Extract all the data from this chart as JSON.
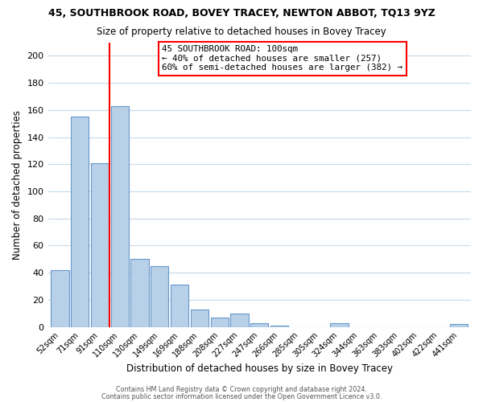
{
  "title1": "45, SOUTHBROOK ROAD, BOVEY TRACEY, NEWTON ABBOT, TQ13 9YZ",
  "title2": "Size of property relative to detached houses in Bovey Tracey",
  "xlabel": "Distribution of detached houses by size in Bovey Tracey",
  "ylabel": "Number of detached properties",
  "bin_labels": [
    "52sqm",
    "71sqm",
    "91sqm",
    "110sqm",
    "130sqm",
    "149sqm",
    "169sqm",
    "188sqm",
    "208sqm",
    "227sqm",
    "247sqm",
    "266sqm",
    "285sqm",
    "305sqm",
    "324sqm",
    "344sqm",
    "363sqm",
    "383sqm",
    "402sqm",
    "422sqm",
    "441sqm"
  ],
  "bar_heights": [
    42,
    155,
    121,
    163,
    50,
    45,
    31,
    13,
    7,
    10,
    3,
    1,
    0,
    0,
    3,
    0,
    0,
    0,
    0,
    0,
    2
  ],
  "bar_color": "#b8d0e8",
  "bar_edge_color": "#6699cc",
  "vline_x_index": 2.5,
  "vline_color": "red",
  "annotation_box_text": "45 SOUTHBROOK ROAD: 100sqm\n← 40% of detached houses are smaller (257)\n60% of semi-detached houses are larger (382) →",
  "ylim": [
    0,
    210
  ],
  "yticks": [
    0,
    20,
    40,
    60,
    80,
    100,
    120,
    140,
    160,
    180,
    200
  ],
  "footer1": "Contains HM Land Registry data © Crown copyright and database right 2024.",
  "footer2": "Contains public sector information licensed under the Open Government Licence v3.0.",
  "background_color": "#ffffff",
  "grid_color": "#c8dae8"
}
